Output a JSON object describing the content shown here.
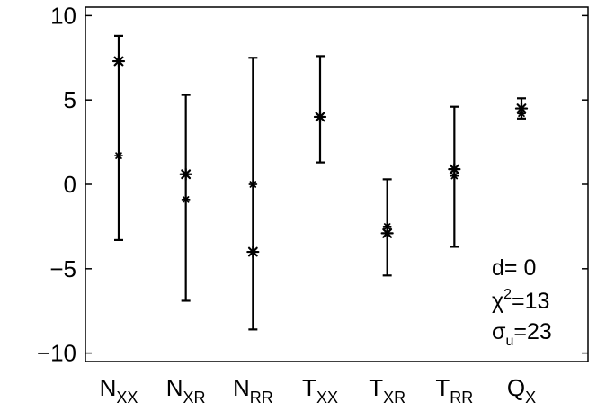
{
  "chart_data": {
    "type": "scatter",
    "categories": [
      {
        "main": "N",
        "sub": "XX"
      },
      {
        "main": "N",
        "sub": "XR"
      },
      {
        "main": "N",
        "sub": "RR"
      },
      {
        "main": "T",
        "sub": "XX"
      },
      {
        "main": "T",
        "sub": "XR"
      },
      {
        "main": "T",
        "sub": "RR"
      },
      {
        "main": "Q",
        "sub": "X"
      }
    ],
    "series": [
      {
        "marker": "asterisk-large",
        "values": [
          7.3,
          0.6,
          -4.0,
          4.0,
          -2.9,
          0.9,
          4.5
        ]
      },
      {
        "marker": "asterisk-small",
        "values": [
          1.7,
          -0.9,
          0.0,
          4.0,
          -2.5,
          0.5,
          4.2
        ]
      }
    ],
    "error_bars": [
      {
        "low": -3.3,
        "high": 8.8
      },
      {
        "low": -6.9,
        "high": 5.3
      },
      {
        "low": -8.6,
        "high": 7.5
      },
      {
        "low": 1.3,
        "high": 7.6
      },
      {
        "low": -5.4,
        "high": 0.3
      },
      {
        "low": -3.7,
        "high": 4.6
      },
      {
        "low": 3.9,
        "high": 5.1
      }
    ],
    "yticks": [
      "10",
      "5",
      "0",
      "−5",
      "−10"
    ],
    "ytick_values": [
      10,
      5,
      0,
      -5,
      -10
    ],
    "ylim": [
      -10.5,
      10.5
    ],
    "xlabel": "",
    "ylabel": "",
    "title": "",
    "grid": false,
    "annotation": {
      "line1": "d= 0",
      "chi_symbol": "χ",
      "chi_exp": "2",
      "chi_value": "=13",
      "sigma_symbol": "σ",
      "sigma_sub": "u",
      "sigma_value": "=23",
      "placement": "bottom-right"
    }
  }
}
